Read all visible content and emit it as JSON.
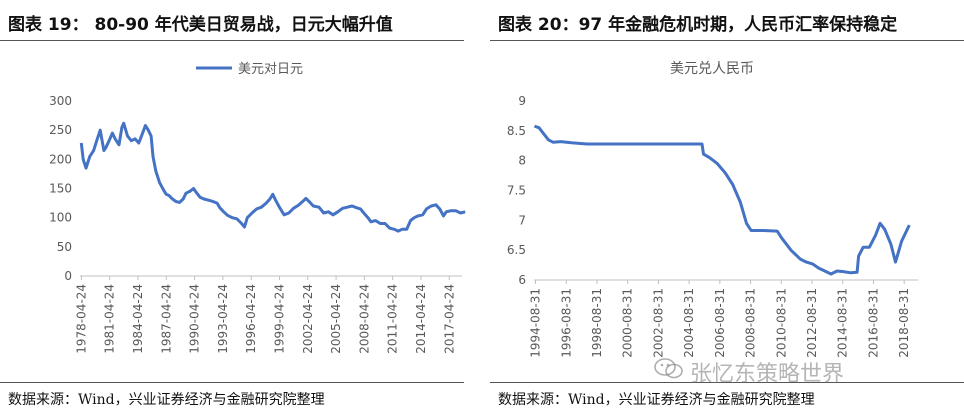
{
  "left": {
    "title": "图表 19：  80-90 年代美日贸易战，日元大幅升值",
    "source": "数据来源：Wind，兴业证券经济与金融研究院整理"
  },
  "right": {
    "title": "图表 20：97 年金融危机时期，人民币汇率保持稳定",
    "source": "数据来源：Wind，兴业证券经济与金融研究院整理"
  },
  "watermark": "张忆东策略世界",
  "colors": {
    "series": "#4472C4",
    "axis": "#BFBFBF",
    "text": "#595959"
  },
  "chart_data": [
    {
      "type": "line",
      "title": "",
      "legend": {
        "entries": [
          "美元对日元"
        ],
        "position": "top"
      },
      "xlabel": "",
      "ylabel": "",
      "ylim": [
        0,
        300
      ],
      "yticks": [
        0,
        50,
        100,
        150,
        200,
        250,
        300
      ],
      "xticks": [
        "1978-04-24",
        "1981-04-24",
        "1984-04-24",
        "1987-04-24",
        "1990-04-24",
        "1993-04-24",
        "1996-04-24",
        "1999-04-24",
        "2002-04-24",
        "2005-04-24",
        "2008-04-24",
        "2011-04-24",
        "2014-04-24",
        "2017-04-24"
      ],
      "grid": false,
      "series": [
        {
          "name": "美元对日元",
          "x": [
            1978.3,
            1978.5,
            1978.8,
            1979.2,
            1979.6,
            1980.0,
            1980.3,
            1980.7,
            1980.9,
            1981.2,
            1981.6,
            1981.9,
            1982.3,
            1982.6,
            1982.8,
            1983.2,
            1983.6,
            1984.0,
            1984.4,
            1984.8,
            1985.1,
            1985.4,
            1985.7,
            1985.9,
            1986.2,
            1986.6,
            1987.0,
            1987.3,
            1987.6,
            1987.9,
            1988.3,
            1988.7,
            1989.1,
            1989.4,
            1989.8,
            1990.2,
            1990.5,
            1990.9,
            1991.3,
            1991.8,
            1992.2,
            1992.7,
            1993.0,
            1993.4,
            1993.8,
            1994.3,
            1994.8,
            1995.3,
            1995.6,
            1995.9,
            1996.4,
            1996.9,
            1997.4,
            1997.9,
            1998.3,
            1998.6,
            1998.9,
            1999.3,
            1999.8,
            2000.3,
            2000.8,
            2001.3,
            2001.8,
            2002.1,
            2002.5,
            2002.9,
            2003.5,
            2004.0,
            2004.5,
            2005.0,
            2005.5,
            2006.0,
            2006.5,
            2007.0,
            2007.5,
            2007.9,
            2008.3,
            2008.7,
            2009.0,
            2009.5,
            2010.0,
            2010.5,
            2011.0,
            2011.5,
            2011.9,
            2012.3,
            2012.8,
            2013.2,
            2013.6,
            2014.0,
            2014.5,
            2014.9,
            2015.4,
            2015.9,
            2016.3,
            2016.7,
            2017.0,
            2017.5,
            2018.0,
            2018.5,
            2019.0
          ],
          "y": [
            228,
            200,
            185,
            205,
            215,
            235,
            250,
            215,
            220,
            230,
            245,
            235,
            225,
            255,
            262,
            240,
            232,
            235,
            228,
            245,
            258,
            250,
            240,
            205,
            180,
            160,
            148,
            140,
            138,
            133,
            128,
            126,
            132,
            142,
            145,
            150,
            143,
            135,
            132,
            130,
            128,
            125,
            117,
            110,
            104,
            100,
            98,
            90,
            84,
            100,
            108,
            115,
            118,
            125,
            132,
            140,
            130,
            118,
            105,
            108,
            116,
            121,
            128,
            133,
            127,
            120,
            118,
            108,
            110,
            105,
            110,
            116,
            118,
            120,
            117,
            115,
            107,
            100,
            93,
            95,
            90,
            90,
            82,
            80,
            77,
            80,
            80,
            95,
            100,
            103,
            105,
            115,
            120,
            122,
            115,
            103,
            110,
            112,
            112,
            108,
            110
          ]
        }
      ]
    },
    {
      "type": "line",
      "title": "美元兑人民币",
      "xlabel": "",
      "ylabel": "",
      "ylim": [
        6,
        9
      ],
      "yticks": [
        6,
        6.5,
        7,
        7.5,
        8,
        8.5,
        9
      ],
      "xticks": [
        "1994-08-31",
        "1996-08-31",
        "1998-08-31",
        "2000-08-31",
        "2002-08-31",
        "2004-08-31",
        "2006-08-31",
        "2008-08-31",
        "2010-08-31",
        "2012-08-31",
        "2014-08-31",
        "2016-08-31",
        "2018-08-31"
      ],
      "grid": false,
      "series": [
        {
          "name": "",
          "x": [
            1994.6,
            1994.9,
            1995.2,
            1995.5,
            1995.8,
            1996.3,
            1997.0,
            1998.0,
            2000.0,
            2002.0,
            2004.0,
            2005.5,
            2005.6,
            2006.0,
            2006.5,
            2007.0,
            2007.5,
            2008.0,
            2008.4,
            2008.7,
            2009.5,
            2010.4,
            2010.7,
            2011.3,
            2011.9,
            2012.3,
            2012.7,
            2013.1,
            2013.5,
            2013.9,
            2014.3,
            2014.7,
            2015.2,
            2015.6,
            2015.7,
            2016.0,
            2016.4,
            2016.8,
            2017.1,
            2017.4,
            2017.8,
            2018.1,
            2018.5,
            2019.0
          ],
          "y": [
            8.58,
            8.55,
            8.45,
            8.35,
            8.31,
            8.32,
            8.3,
            8.28,
            8.28,
            8.28,
            8.28,
            8.28,
            8.11,
            8.05,
            7.95,
            7.8,
            7.6,
            7.3,
            6.95,
            6.83,
            6.83,
            6.82,
            6.7,
            6.5,
            6.35,
            6.3,
            6.27,
            6.2,
            6.15,
            6.1,
            6.15,
            6.14,
            6.12,
            6.13,
            6.4,
            6.55,
            6.55,
            6.75,
            6.95,
            6.85,
            6.6,
            6.3,
            6.65,
            6.92
          ]
        }
      ]
    }
  ]
}
